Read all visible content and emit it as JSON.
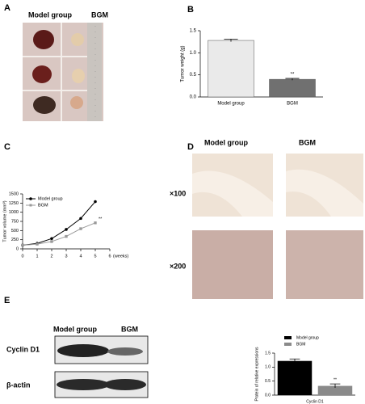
{
  "panels": {
    "a": "A",
    "b": "B",
    "c": "C",
    "d": "D",
    "e": "E",
    "a_model": "Model group",
    "a_bgm": "BGM",
    "d_model": "Model group",
    "d_bgm": "BGM",
    "d_x100": "×100",
    "d_x200": "×200",
    "e_model": "Model group",
    "e_bgm": "BGM",
    "e_cyclin": "Cyclin D1",
    "e_actin": "β-actin"
  },
  "chart_data": [
    {
      "type": "bar",
      "ylabel": "Tumor weight (g)",
      "categories": [
        "Model group",
        "BGM"
      ],
      "series": [
        {
          "values": [
            1.28,
            0.4
          ],
          "errors": [
            0.03,
            0.02
          ]
        }
      ],
      "colors": [
        "#efefef",
        "#707070"
      ],
      "annotation": "**",
      "ylim": [
        0,
        1.5
      ],
      "yticks": [
        {
          "value": 0,
          "label": "0.0"
        },
        0.5,
        {
          "value": 1,
          "label": "1.0"
        },
        1.5
      ]
    },
    {
      "type": "line",
      "ylabel": "Tumor volume (mm³)",
      "xlabel": "(weeks)",
      "x": [
        0,
        1,
        2,
        3,
        4,
        5
      ],
      "series": [
        {
          "name": "Model group",
          "color": "#000000",
          "values": [
            100,
            150,
            280,
            530,
            830,
            1290
          ]
        },
        {
          "name": "BGM",
          "color": "#999999",
          "values": [
            100,
            130,
            200,
            340,
            550,
            710
          ]
        }
      ],
      "annotation": "**",
      "legend": true,
      "xlim": [
        0,
        6
      ],
      "xticks": [
        0,
        1,
        2,
        3,
        4,
        5,
        6
      ],
      "ylim": [
        0,
        1500
      ],
      "yticks": [
        0,
        250,
        500,
        750,
        1000,
        1250,
        1500
      ]
    },
    {
      "type": "bar",
      "ylabel": "Protein of relative expressions",
      "categories": [
        "Cyclin D1"
      ],
      "series": [
        {
          "name": "Model group",
          "color": "#000000",
          "values": [
            1.22
          ],
          "errors": [
            0.07
          ]
        },
        {
          "name": "BGM",
          "color": "#8a8a8a",
          "values": [
            0.33
          ],
          "errors": [
            0.07
          ]
        }
      ],
      "annotation": "**",
      "legend": true,
      "ylim": [
        0,
        1.5
      ],
      "yticks": [
        {
          "value": 0,
          "label": "0.0"
        },
        0.5,
        {
          "value": 1,
          "label": "1.0"
        },
        1.5
      ]
    }
  ]
}
